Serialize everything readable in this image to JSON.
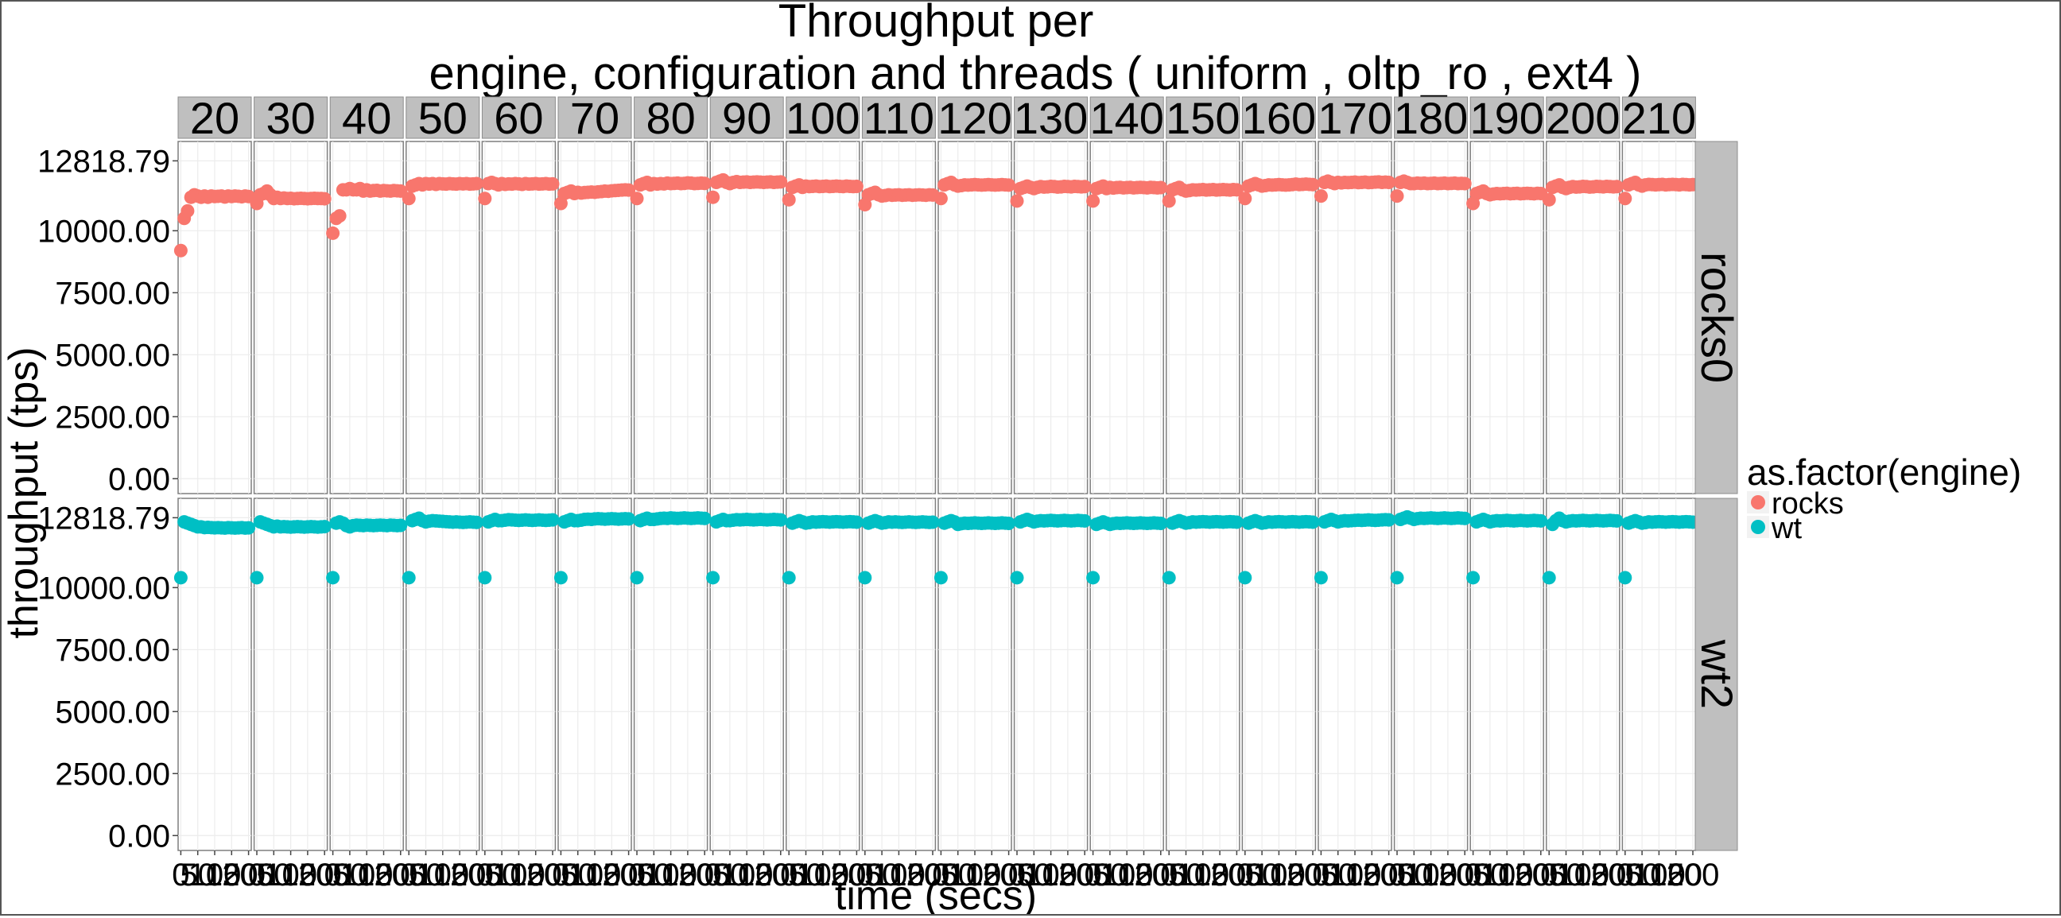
{
  "chart_data": {
    "type": "scatter",
    "title_lines": [
      "Throughput per",
      "engine, configuration and threads ( uniform , oltp_ro , ext4 )"
    ],
    "xlabel": "time (secs)",
    "ylabel": "throughput (tps)",
    "legend": {
      "title": "as.factor(engine)",
      "placement": "right",
      "entries": [
        {
          "label": "rocks",
          "color": "#F8766D"
        },
        {
          "label": "wt",
          "color": "#00BFC4"
        }
      ]
    },
    "facet_columns": [
      "20",
      "30",
      "40",
      "50",
      "60",
      "70",
      "80",
      "90",
      "100",
      "110",
      "120",
      "130",
      "140",
      "150",
      "160",
      "170",
      "180",
      "190",
      "200",
      "210"
    ],
    "facet_rows": [
      "rocks0",
      "wt2"
    ],
    "y_ticks": [
      "0.00",
      "2500.00",
      "5000.00",
      "7500.00",
      "10000.00",
      "12818.79"
    ],
    "y_tick_values": [
      0,
      2500,
      5000,
      7500,
      10000,
      12818.79
    ],
    "ylim": [
      -600,
      13600
    ],
    "x_ticks": [
      0,
      50,
      100,
      150,
      200
    ],
    "x_tick_labels": [
      "0",
      "50",
      "100",
      "150",
      "200"
    ],
    "xlim": [
      -8,
      208
    ],
    "grid": true,
    "x": [
      0,
      10,
      20,
      30,
      40,
      50,
      60,
      70,
      80,
      90,
      100,
      110,
      120,
      130,
      140,
      150,
      160,
      170,
      180,
      190,
      200
    ],
    "series": [
      {
        "name": "rocks",
        "facet_row": "rocks0",
        "color": "#F8766D",
        "values": [
          [
            9200,
            10500,
            10800,
            11350,
            11450,
            11400,
            11350,
            11400,
            11350,
            11400,
            11380,
            11390,
            11400,
            11360,
            11400,
            11380,
            11400,
            11390,
            11370,
            11400,
            11380
          ],
          [
            11100,
            11450,
            11500,
            11600,
            11450,
            11300,
            11350,
            11300,
            11320,
            11300,
            11310,
            11290,
            11300,
            11310,
            11300,
            11290,
            11300,
            11310,
            11300,
            11300,
            11290
          ],
          [
            9900,
            10500,
            10600,
            11650,
            11650,
            11700,
            11650,
            11650,
            11700,
            11600,
            11650,
            11600,
            11620,
            11630,
            11600,
            11620,
            11610,
            11600,
            11620,
            11610,
            11600
          ],
          [
            11300,
            11800,
            11850,
            11900,
            11850,
            11900,
            11880,
            11900,
            11870,
            11900,
            11890,
            11880,
            11900,
            11890,
            11880,
            11900,
            11890,
            11900,
            11880,
            11890,
            11900
          ],
          [
            11300,
            11900,
            11950,
            11900,
            11850,
            11900,
            11870,
            11890,
            11880,
            11900,
            11890,
            11870,
            11900,
            11880,
            11890,
            11900,
            11880,
            11890,
            11900,
            11880,
            11890
          ],
          [
            11100,
            11500,
            11550,
            11600,
            11500,
            11550,
            11520,
            11540,
            11550,
            11560,
            11550,
            11570,
            11580,
            11600,
            11590,
            11610,
            11620,
            11630,
            11640,
            11650,
            11640
          ],
          [
            11300,
            11850,
            11900,
            11950,
            11850,
            11900,
            11880,
            11900,
            11890,
            11920,
            11900,
            11910,
            11920,
            11900,
            11910,
            11930,
            11920,
            11900,
            11910,
            11920,
            11910
          ],
          [
            11350,
            11950,
            12000,
            12050,
            11950,
            11900,
            11950,
            11980,
            11950,
            11960,
            11970,
            11950,
            11960,
            11970,
            11960,
            11950,
            11960,
            11970,
            11950,
            11960,
            11970
          ],
          [
            11250,
            11750,
            11800,
            11850,
            11750,
            11800,
            11780,
            11790,
            11800,
            11780,
            11790,
            11800,
            11780,
            11790,
            11800,
            11790,
            11780,
            11800,
            11790,
            11780,
            11790
          ],
          [
            11050,
            11450,
            11500,
            11550,
            11450,
            11400,
            11420,
            11450,
            11430,
            11440,
            11450,
            11430,
            11440,
            11450,
            11430,
            11440,
            11450,
            11440,
            11430,
            11450,
            11440
          ],
          [
            11300,
            11850,
            11900,
            11950,
            11850,
            11800,
            11820,
            11850,
            11840,
            11850,
            11860,
            11850,
            11840,
            11850,
            11860,
            11850,
            11840,
            11850,
            11860,
            11850,
            11840
          ],
          [
            11200,
            11700,
            11750,
            11800,
            11750,
            11700,
            11750,
            11780,
            11760,
            11770,
            11790,
            11780,
            11760,
            11770,
            11790,
            11780,
            11770,
            11790,
            11780,
            11770,
            11780
          ],
          [
            11200,
            11700,
            11750,
            11800,
            11700,
            11750,
            11720,
            11740,
            11750,
            11730,
            11740,
            11750,
            11730,
            11740,
            11750,
            11740,
            11730,
            11750,
            11740,
            11730,
            11740
          ],
          [
            11200,
            11650,
            11700,
            11750,
            11650,
            11600,
            11620,
            11650,
            11640,
            11650,
            11660,
            11640,
            11650,
            11660,
            11640,
            11650,
            11660,
            11650,
            11640,
            11660,
            11650
          ],
          [
            11300,
            11800,
            11850,
            11900,
            11850,
            11800,
            11820,
            11850,
            11840,
            11850,
            11860,
            11850,
            11840,
            11850,
            11860,
            11880,
            11860,
            11870,
            11880,
            11870,
            11860
          ],
          [
            11400,
            11950,
            12000,
            11950,
            11900,
            11950,
            11930,
            11950,
            11940,
            11950,
            11960,
            11940,
            11950,
            11960,
            11940,
            11950,
            11960,
            11970,
            11950,
            11960,
            11950
          ],
          [
            11400,
            11950,
            12000,
            11950,
            11900,
            11900,
            11920,
            11910,
            11920,
            11900,
            11910,
            11920,
            11900,
            11910,
            11920,
            11900,
            11910,
            11920,
            11900,
            11910,
            11900
          ],
          [
            11100,
            11500,
            11550,
            11600,
            11500,
            11450,
            11480,
            11500,
            11490,
            11500,
            11510,
            11490,
            11500,
            11510,
            11490,
            11500,
            11510,
            11500,
            11490,
            11510,
            11500
          ],
          [
            11250,
            11750,
            11800,
            11850,
            11750,
            11700,
            11750,
            11780,
            11760,
            11770,
            11790,
            11780,
            11760,
            11770,
            11790,
            11780,
            11770,
            11790,
            11780,
            11770,
            11780
          ],
          [
            11300,
            11850,
            11900,
            11950,
            11850,
            11800,
            11850,
            11870,
            11860,
            11850,
            11860,
            11870,
            11850,
            11860,
            11870,
            11860,
            11850,
            11870,
            11860,
            11850,
            11860
          ]
        ]
      },
      {
        "name": "wt",
        "facet_row": "wt2",
        "color": "#00BFC4",
        "values": [
          [
            10400,
            12650,
            12600,
            12550,
            12500,
            12450,
            12450,
            12420,
            12430,
            12420,
            12410,
            12420,
            12410,
            12400,
            12420,
            12410,
            12400,
            12410,
            12420,
            12400,
            12410
          ],
          [
            10400,
            12650,
            12600,
            12550,
            12500,
            12450,
            12480,
            12450,
            12460,
            12450,
            12440,
            12450,
            12460,
            12450,
            12440,
            12450,
            12460,
            12450,
            12440,
            12450,
            12460
          ],
          [
            10400,
            12600,
            12650,
            12600,
            12500,
            12450,
            12500,
            12520,
            12510,
            12500,
            12520,
            12510,
            12500,
            12510,
            12520,
            12510,
            12500,
            12520,
            12510,
            12500,
            12510
          ],
          [
            10400,
            12700,
            12750,
            12800,
            12700,
            12650,
            12680,
            12700,
            12690,
            12680,
            12670,
            12660,
            12650,
            12640,
            12650,
            12640,
            12630,
            12640,
            12650,
            12640,
            12630
          ],
          [
            10400,
            12650,
            12700,
            12750,
            12700,
            12700,
            12720,
            12740,
            12730,
            12720,
            12710,
            12720,
            12730,
            12720,
            12710,
            12720,
            12730,
            12720,
            12710,
            12720,
            12730
          ],
          [
            10400,
            12650,
            12700,
            12750,
            12700,
            12700,
            12720,
            12750,
            12760,
            12750,
            12770,
            12780,
            12770,
            12760,
            12770,
            12780,
            12770,
            12760,
            12770,
            12780,
            12770
          ],
          [
            10400,
            12700,
            12750,
            12800,
            12750,
            12750,
            12770,
            12790,
            12800,
            12790,
            12810,
            12800,
            12790,
            12800,
            12810,
            12800,
            12790,
            12800,
            12810,
            12800,
            12790
          ],
          [
            10400,
            12650,
            12700,
            12750,
            12700,
            12700,
            12720,
            12740,
            12730,
            12740,
            12750,
            12740,
            12730,
            12740,
            12750,
            12740,
            12730,
            12740,
            12750,
            12740,
            12730
          ],
          [
            10400,
            12600,
            12650,
            12700,
            12650,
            12600,
            12620,
            12650,
            12640,
            12650,
            12660,
            12650,
            12640,
            12650,
            12660,
            12650,
            12640,
            12650,
            12660,
            12650,
            12640
          ],
          [
            10400,
            12600,
            12650,
            12700,
            12650,
            12600,
            12620,
            12650,
            12640,
            12650,
            12640,
            12630,
            12640,
            12650,
            12640,
            12630,
            12640,
            12650,
            12640,
            12630,
            12640
          ],
          [
            10400,
            12600,
            12650,
            12700,
            12650,
            12550,
            12580,
            12600,
            12590,
            12600,
            12610,
            12600,
            12590,
            12600,
            12610,
            12600,
            12590,
            12600,
            12610,
            12600,
            12590
          ],
          [
            10400,
            12650,
            12700,
            12750,
            12700,
            12650,
            12680,
            12700,
            12690,
            12700,
            12710,
            12700,
            12690,
            12700,
            12710,
            12700,
            12690,
            12700,
            12710,
            12700,
            12690
          ],
          [
            10400,
            12550,
            12600,
            12650,
            12600,
            12550,
            12580,
            12600,
            12590,
            12600,
            12610,
            12600,
            12590,
            12600,
            12610,
            12600,
            12590,
            12600,
            12610,
            12600,
            12590
          ],
          [
            10400,
            12600,
            12650,
            12700,
            12650,
            12600,
            12620,
            12650,
            12640,
            12650,
            12660,
            12650,
            12640,
            12650,
            12660,
            12650,
            12640,
            12650,
            12660,
            12650,
            12640
          ],
          [
            10400,
            12600,
            12650,
            12700,
            12650,
            12600,
            12620,
            12650,
            12640,
            12650,
            12660,
            12650,
            12640,
            12650,
            12660,
            12650,
            12640,
            12650,
            12660,
            12650,
            12640
          ],
          [
            10400,
            12650,
            12700,
            12750,
            12700,
            12650,
            12680,
            12700,
            12690,
            12700,
            12710,
            12720,
            12710,
            12720,
            12730,
            12720,
            12710,
            12720,
            12730,
            12740,
            12730
          ],
          [
            10400,
            12750,
            12800,
            12850,
            12800,
            12750,
            12780,
            12800,
            12790,
            12800,
            12810,
            12800,
            12790,
            12800,
            12810,
            12800,
            12790,
            12800,
            12810,
            12800,
            12790
          ],
          [
            10400,
            12650,
            12700,
            12750,
            12700,
            12650,
            12680,
            12700,
            12690,
            12700,
            12710,
            12700,
            12690,
            12700,
            12710,
            12700,
            12690,
            12700,
            12710,
            12700,
            12690
          ],
          [
            10400,
            12550,
            12700,
            12800,
            12700,
            12650,
            12680,
            12700,
            12690,
            12700,
            12710,
            12700,
            12690,
            12700,
            12710,
            12700,
            12690,
            12700,
            12710,
            12700,
            12690
          ],
          [
            10400,
            12600,
            12650,
            12700,
            12650,
            12600,
            12620,
            12650,
            12640,
            12650,
            12660,
            12650,
            12640,
            12650,
            12660,
            12650,
            12640,
            12650,
            12660,
            12650,
            12640
          ]
        ]
      }
    ]
  }
}
